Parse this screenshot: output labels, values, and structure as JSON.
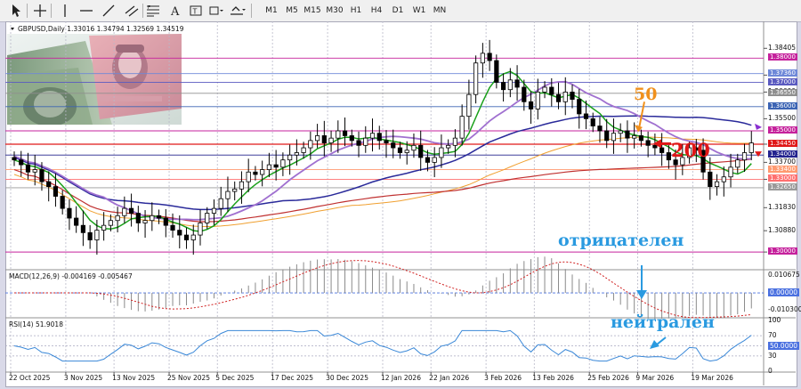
{
  "toolbar": {
    "timeframes": [
      "M1",
      "M5",
      "M15",
      "M30",
      "H1",
      "H4",
      "D1",
      "W1",
      "MN"
    ],
    "tools": [
      "cursor-icon",
      "crosshair-icon",
      "vertical-line-icon",
      "horizontal-line-icon",
      "trend-line-icon",
      "channel-icon",
      "fibonacci-icon",
      "text-icon",
      "label-icon",
      "shapes-icon"
    ]
  },
  "chart_data": {
    "type": "candlestick",
    "symbol_header": "GBPUSD,Daily  1.33016 1.34794 1.32569 1.34519",
    "price_axis": {
      "ylim": [
        1.2938,
        1.3915
      ],
      "ticks": [
        "1.38405",
        "1.37300",
        "1.36600",
        "1.35500",
        "1.34450",
        "1.33700",
        "1.33000",
        "1.31830",
        "1.30880",
        "1.30000"
      ],
      "tick_values": [
        1.38405,
        1.373,
        1.366,
        1.355,
        1.3445,
        1.337,
        1.33,
        1.3183,
        1.3088,
        1.3
      ],
      "levels": [
        {
          "value": 1.38,
          "label": "1.38000",
          "color": "#c5219c"
        },
        {
          "value": 1.3736,
          "label": "1.37360",
          "color": "#6e88d8"
        },
        {
          "value": 1.37,
          "label": "1.37000",
          "color": "#5a5ac0"
        },
        {
          "value": 1.3655,
          "label": "1.36550",
          "color": "#8f8f8f"
        },
        {
          "value": 1.36,
          "label": "1.36000",
          "color": "#3c64b4"
        },
        {
          "value": 1.35,
          "label": "1.35000",
          "color": "#c5219c"
        },
        {
          "value": 1.3445,
          "label": "1.34450",
          "color": "#e01818"
        },
        {
          "value": 1.34,
          "label": "1.34000",
          "color": "#23238e"
        },
        {
          "value": 1.334,
          "label": "1.33400",
          "color": "#ff9a70"
        },
        {
          "value": 1.33,
          "label": "1.33000",
          "color": "#ff7070"
        },
        {
          "value": 1.3265,
          "label": "1.32650",
          "color": "#9a9a9a"
        },
        {
          "value": 1.3,
          "label": "1.30000",
          "color": "#c5219c"
        }
      ]
    },
    "dates": [
      "22 Oct 2025",
      "3 Nov 2025",
      "13 Nov 2025",
      "25 Nov 2025",
      "5 Dec 2025",
      "17 Dec 2025",
      "30 Dec 2025",
      "12 Jan 2026",
      "22 Jan 2026",
      "3 Feb 2026",
      "13 Feb 2026",
      "25 Feb 2026",
      "9 Mar 2026",
      "19 Mar 2026"
    ],
    "closes": [
      1.338,
      1.336,
      1.333,
      1.334,
      1.329,
      1.327,
      1.323,
      1.318,
      1.314,
      1.311,
      1.308,
      1.305,
      1.309,
      1.311,
      1.313,
      1.315,
      1.318,
      1.316,
      1.312,
      1.313,
      1.315,
      1.314,
      1.311,
      1.309,
      1.307,
      1.305,
      1.307,
      1.312,
      1.316,
      1.318,
      1.322,
      1.325,
      1.326,
      1.329,
      1.333,
      1.332,
      1.334,
      1.336,
      1.335,
      1.338,
      1.34,
      1.341,
      1.343,
      1.346,
      1.348,
      1.345,
      1.347,
      1.35,
      1.348,
      1.346,
      1.344,
      1.347,
      1.349,
      1.346,
      1.345,
      1.343,
      1.341,
      1.342,
      1.344,
      1.339,
      1.337,
      1.339,
      1.343,
      1.344,
      1.347,
      1.356,
      1.365,
      1.378,
      1.382,
      1.379,
      1.37,
      1.367,
      1.371,
      1.368,
      1.362,
      1.359,
      1.366,
      1.368,
      1.365,
      1.362,
      1.366,
      1.363,
      1.357,
      1.355,
      1.352,
      1.35,
      1.346,
      1.349,
      1.35,
      1.347,
      1.348,
      1.346,
      1.344,
      1.343,
      1.341,
      1.338,
      1.336,
      1.339,
      1.343,
      1.342,
      1.333,
      1.327,
      1.329,
      1.331,
      1.335,
      1.338,
      1.341,
      1.345
    ],
    "ma_lines": [
      {
        "name": "50",
        "color": "#f0a030"
      },
      {
        "name": "200",
        "color": "#c03030"
      },
      {
        "name": "blue",
        "color": "#2a2a9a"
      },
      {
        "name": "violet",
        "color": "#a070d0"
      },
      {
        "name": "green",
        "color": "#1aa01a"
      }
    ],
    "macd": {
      "header": "MACD(12,26,9) -0.004169 -0.005467",
      "ticks": [
        "0.010675",
        "0.00000",
        "-0.010300"
      ],
      "tick_values": [
        0.010675,
        0,
        -0.0103
      ],
      "last_value": -0.004169,
      "signal_value": -0.005467
    },
    "rsi": {
      "header": "RSI(14) 51.9018",
      "ticks": [
        "100",
        "70",
        "50.0000",
        "30",
        "0"
      ],
      "tick_values": [
        100,
        70,
        50,
        30,
        0
      ],
      "last_value": 51.9018
    },
    "annotations": {
      "ma50_label": "50",
      "ma200_label": "200",
      "macd_note": "отрицателен",
      "rsi_note": "нейтрален"
    }
  }
}
